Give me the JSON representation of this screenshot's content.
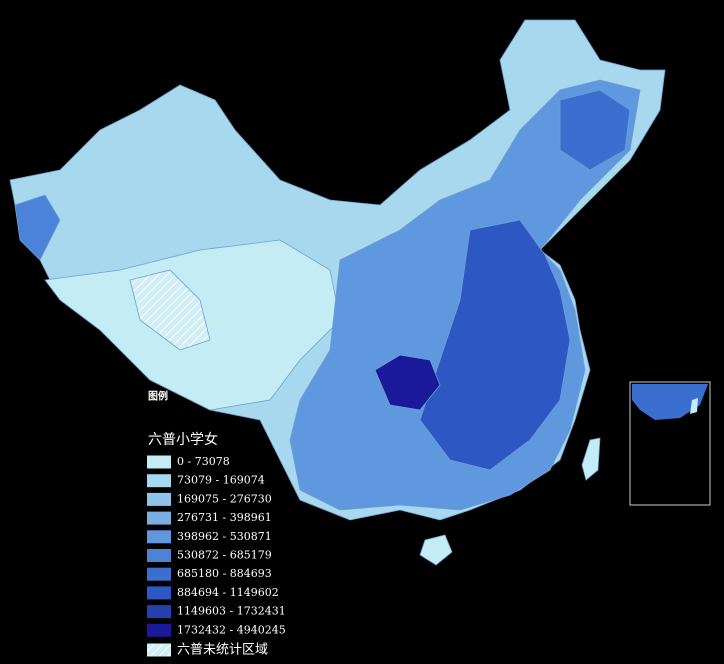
{
  "legend": {
    "heading": "图例",
    "title": "六普小学女",
    "items": [
      {
        "label": "0 - 73078",
        "color": "#c4ecf4"
      },
      {
        "label": "73079 - 169074",
        "color": "#a6d8ef"
      },
      {
        "label": "169075 - 276730",
        "color": "#90c3ea"
      },
      {
        "label": "276731 - 398961",
        "color": "#78aee4"
      },
      {
        "label": "398962 - 530871",
        "color": "#5f98de"
      },
      {
        "label": "530872 - 685179",
        "color": "#4a83d7"
      },
      {
        "label": "685180 - 884693",
        "color": "#3a6ecf"
      },
      {
        "label": "884694 - 1149602",
        "color": "#2d57c2"
      },
      {
        "label": "1149603 - 1732431",
        "color": "#2340ae"
      },
      {
        "label": "1732432 - 4940245",
        "color": "#19199a"
      }
    ],
    "no_data": "六普未统计区域"
  }
}
